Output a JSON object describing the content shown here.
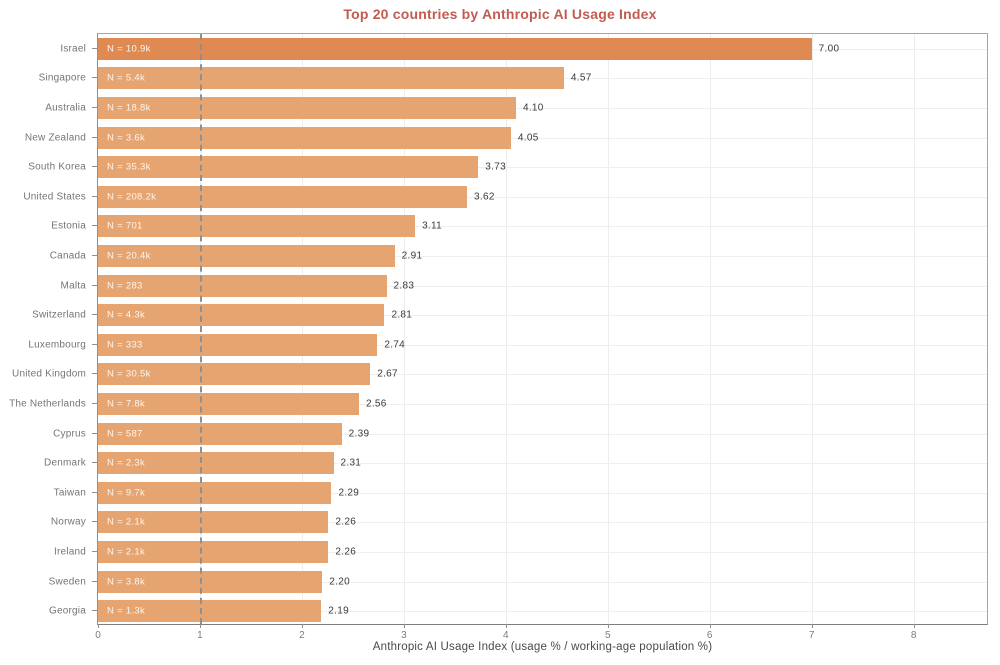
{
  "chart_data": {
    "type": "bar",
    "orientation": "horizontal",
    "title": "Top 20 countries by Anthropic AI Usage Index",
    "xlabel": "Anthropic AI Usage Index (usage % / working-age population %)",
    "categories": [
      "Israel",
      "Singapore",
      "Australia",
      "New Zealand",
      "South Korea",
      "United States",
      "Estonia",
      "Canada",
      "Malta",
      "Switzerland",
      "Luxembourg",
      "United Kingdom",
      "The Netherlands",
      "Cyprus",
      "Denmark",
      "Taiwan",
      "Norway",
      "Ireland",
      "Sweden",
      "Georgia"
    ],
    "values": [
      7.0,
      4.57,
      4.1,
      4.05,
      3.73,
      3.62,
      3.11,
      2.91,
      2.83,
      2.81,
      2.74,
      2.67,
      2.56,
      2.39,
      2.31,
      2.29,
      2.26,
      2.26,
      2.2,
      2.19
    ],
    "value_labels": [
      "7.00",
      "4.57",
      "4.10",
      "4.05",
      "3.73",
      "3.62",
      "3.11",
      "2.91",
      "2.83",
      "2.81",
      "2.74",
      "2.67",
      "2.56",
      "2.39",
      "2.31",
      "2.29",
      "2.26",
      "2.26",
      "2.20",
      "2.19"
    ],
    "bar_labels": [
      "N = 10.9k",
      "N = 5.4k",
      "N = 18.8k",
      "N = 3.6k",
      "N = 35.3k",
      "N = 208.2k",
      "N = 701",
      "N = 20.4k",
      "N = 283",
      "N = 4.3k",
      "N = 333",
      "N = 30.5k",
      "N = 7.8k",
      "N = 587",
      "N = 2.3k",
      "N = 9.7k",
      "N = 2.1k",
      "N = 2.1k",
      "N = 3.8k",
      "N = 1.3k"
    ],
    "x_ticks": [
      0,
      1,
      2,
      3,
      4,
      5,
      6,
      7,
      8
    ],
    "xlim": [
      0,
      8.72
    ],
    "reference_line_x": 1,
    "grid": true,
    "colors": {
      "bar_regular": "#e6a470",
      "bar_highlight": "#de8a52",
      "title": "#c25b50",
      "reference_line": "#8f8f8f"
    },
    "highlight_index": 0
  }
}
